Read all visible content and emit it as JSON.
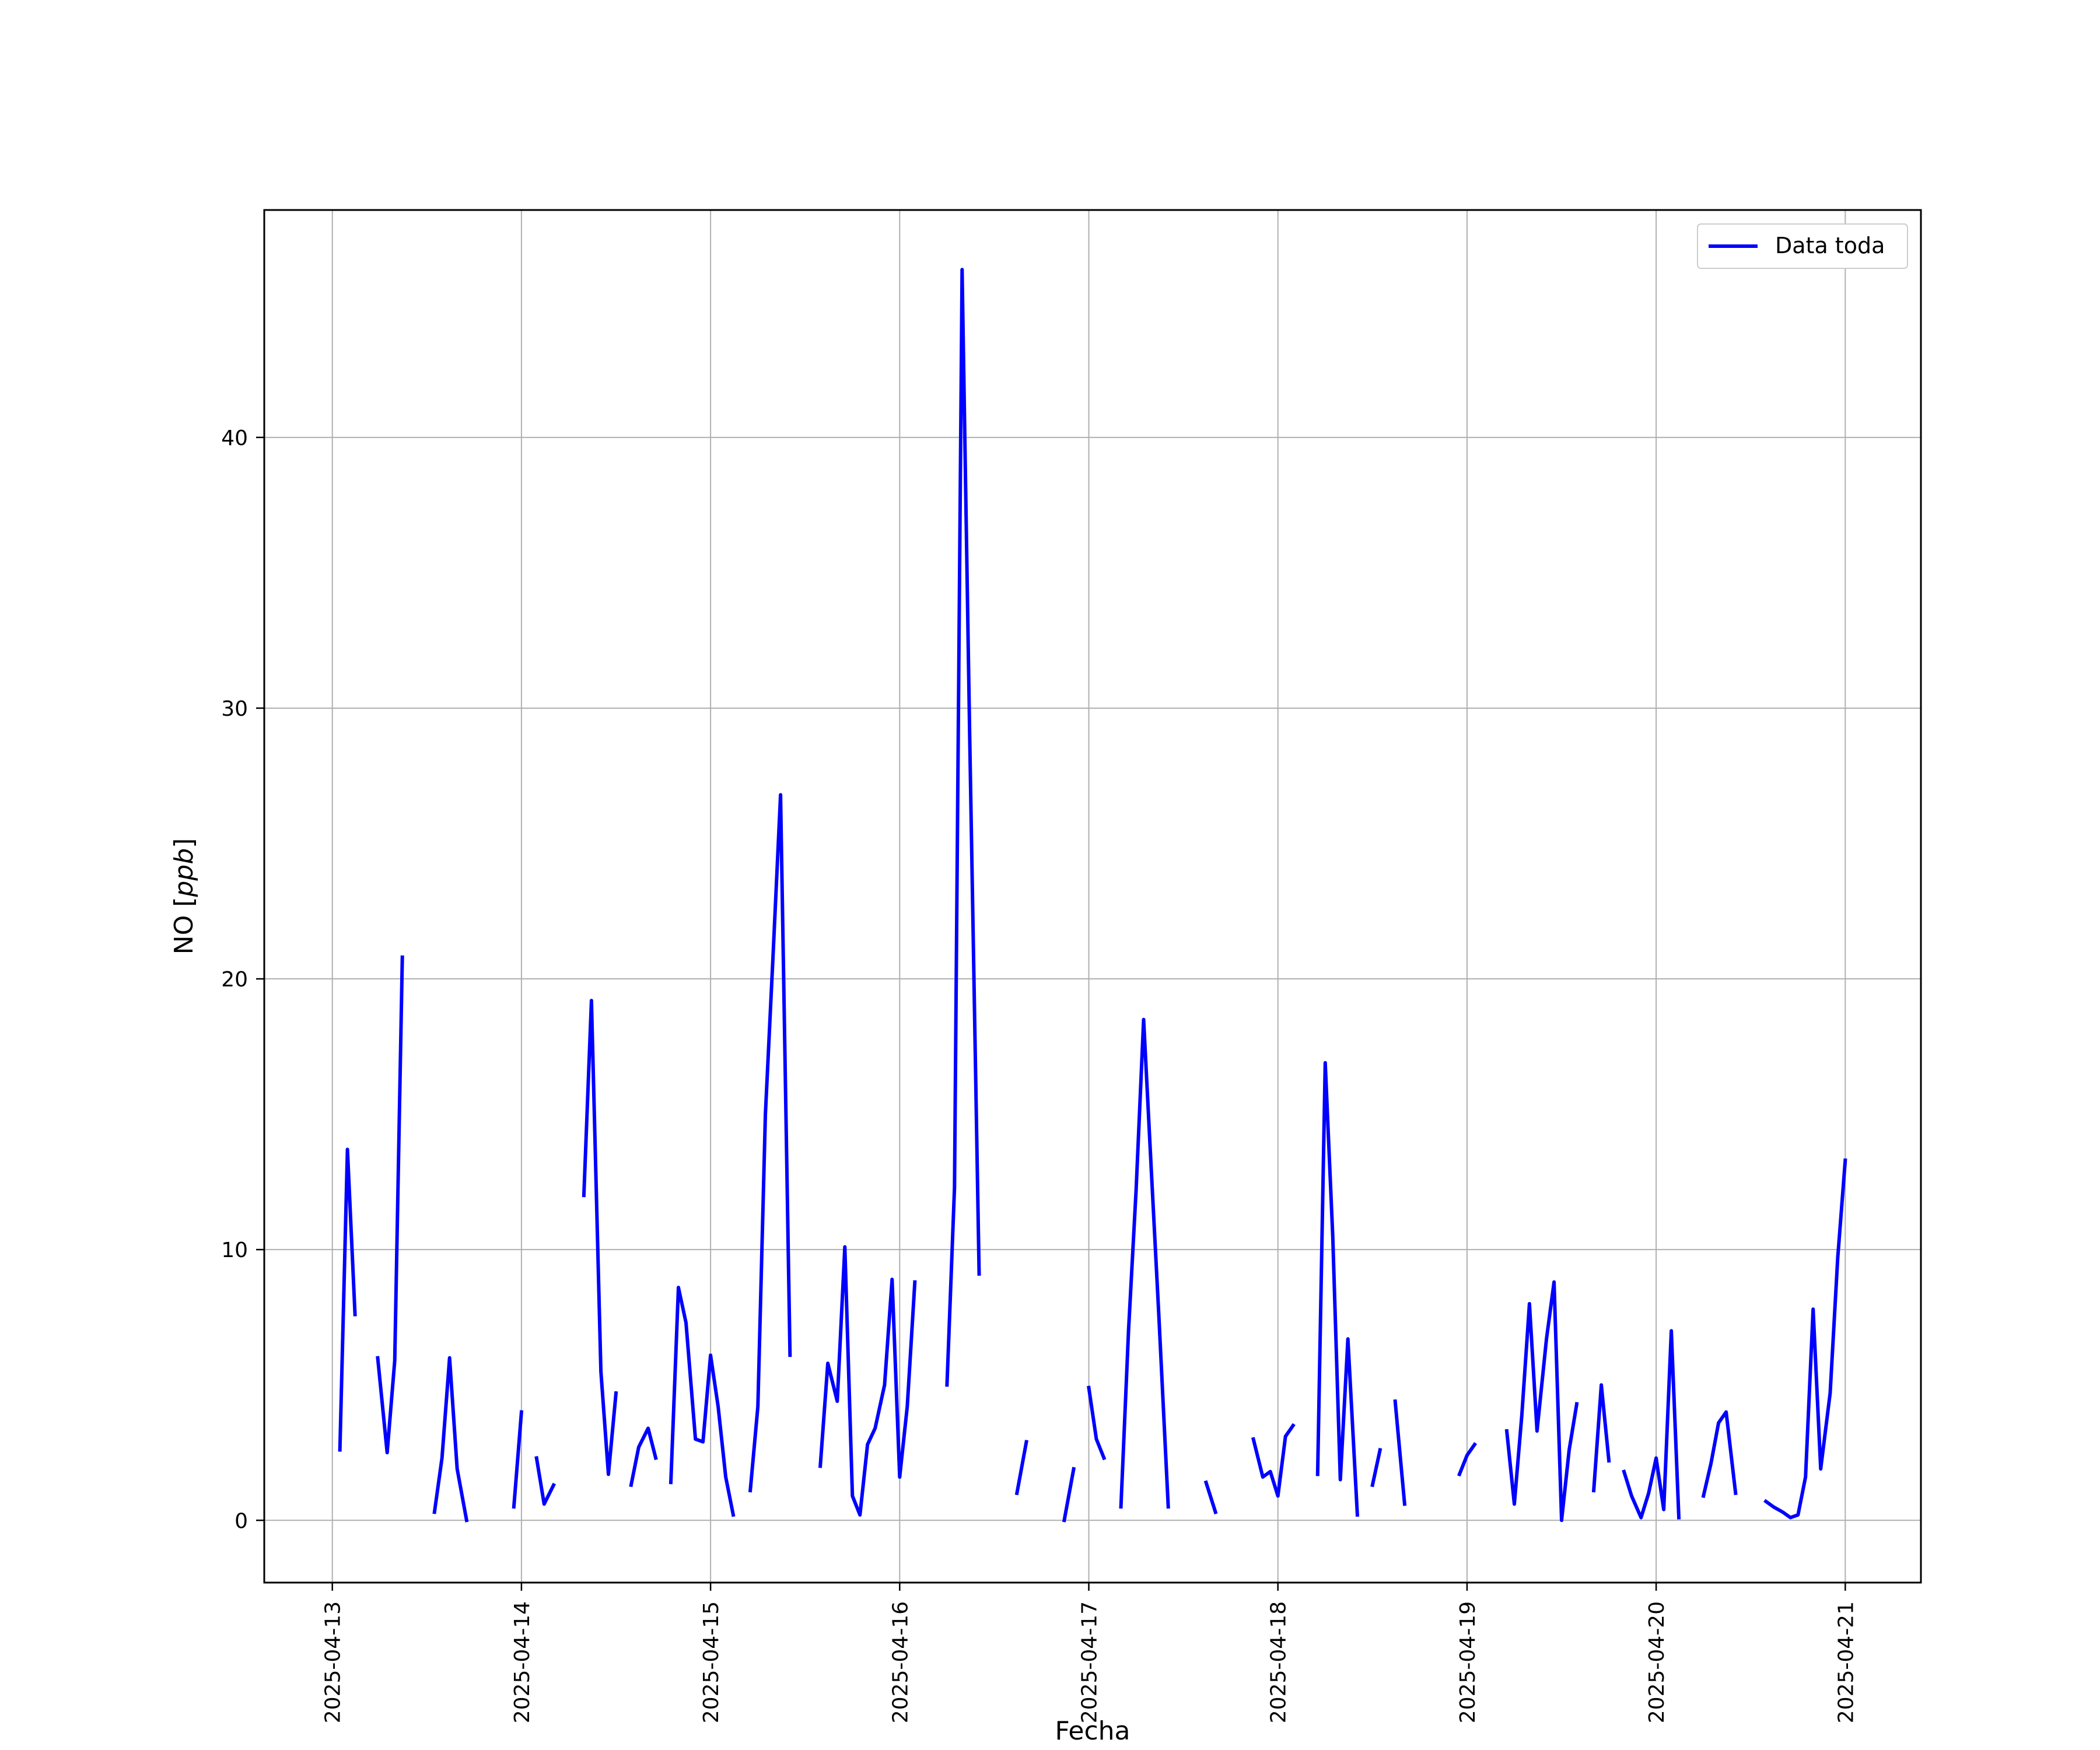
{
  "chart_data": {
    "type": "line",
    "title": "",
    "xlabel": "Fecha",
    "ylabel_main": "NO [",
    "ylabel_unit": "ppb",
    "ylabel_end": "]",
    "x_tick_labels": [
      "2025-04-13",
      "2025-04-14",
      "2025-04-15",
      "2025-04-16",
      "2025-04-17",
      "2025-04-18",
      "2025-04-19",
      "2025-04-20",
      "2025-04-21"
    ],
    "y_ticks": [
      0,
      10,
      20,
      30,
      40
    ],
    "xlim": [
      -0.36,
      8.4
    ],
    "ylim": [
      -2.3,
      48.4
    ],
    "grid": true,
    "legend_position": "top-right",
    "series": [
      {
        "name": "Data toda",
        "color": "#0000ff",
        "segments": [
          [
            [
              0.04,
              2.6
            ],
            [
              0.08,
              13.7
            ],
            [
              0.12,
              7.6
            ]
          ],
          [
            [
              0.24,
              6.0
            ],
            [
              0.29,
              2.5
            ],
            [
              0.33,
              5.9
            ],
            [
              0.37,
              20.8
            ]
          ],
          [
            [
              0.54,
              0.3
            ],
            [
              0.58,
              2.3
            ],
            [
              0.62,
              6.0
            ],
            [
              0.66,
              1.9
            ],
            [
              0.71,
              0.0
            ]
          ],
          [
            [
              0.96,
              0.5
            ],
            [
              1.0,
              4.0
            ]
          ],
          [
            [
              1.08,
              2.3
            ],
            [
              1.12,
              0.6
            ],
            [
              1.17,
              1.3
            ]
          ],
          [
            [
              1.33,
              12.0
            ],
            [
              1.37,
              19.2
            ],
            [
              1.42,
              5.5
            ],
            [
              1.46,
              1.7
            ],
            [
              1.5,
              4.7
            ]
          ],
          [
            [
              1.58,
              1.3
            ],
            [
              1.62,
              2.7
            ],
            [
              1.67,
              3.4
            ],
            [
              1.71,
              2.3
            ]
          ],
          [
            [
              1.79,
              1.4
            ],
            [
              1.83,
              8.6
            ],
            [
              1.87,
              7.3
            ],
            [
              1.92,
              3.0
            ],
            [
              1.96,
              2.9
            ],
            [
              2.0,
              6.1
            ],
            [
              2.04,
              4.2
            ],
            [
              2.08,
              1.6
            ],
            [
              2.12,
              0.2
            ]
          ],
          [
            [
              2.21,
              1.1
            ],
            [
              2.25,
              4.2
            ],
            [
              2.29,
              15.0
            ],
            [
              2.33,
              20.8
            ],
            [
              2.37,
              26.8
            ],
            [
              2.42,
              6.1
            ]
          ],
          [
            [
              2.58,
              2.0
            ],
            [
              2.62,
              5.8
            ],
            [
              2.67,
              4.4
            ],
            [
              2.71,
              10.1
            ],
            [
              2.75,
              0.9
            ],
            [
              2.79,
              0.2
            ],
            [
              2.83,
              2.8
            ],
            [
              2.87,
              3.4
            ],
            [
              2.92,
              5.0
            ],
            [
              2.96,
              8.9
            ],
            [
              3.0,
              1.6
            ],
            [
              3.04,
              4.2
            ],
            [
              3.08,
              8.8
            ]
          ],
          [
            [
              3.25,
              5.0
            ],
            [
              3.29,
              12.3
            ],
            [
              3.33,
              46.2
            ],
            [
              3.37,
              29.0
            ],
            [
              3.42,
              9.1
            ]
          ],
          [
            [
              3.62,
              1.0
            ],
            [
              3.67,
              2.9
            ]
          ],
          [
            [
              3.87,
              0.0
            ],
            [
              3.92,
              1.9
            ]
          ],
          [
            [
              4.0,
              4.9
            ],
            [
              4.04,
              3.0
            ],
            [
              4.08,
              2.3
            ]
          ],
          [
            [
              4.17,
              0.5
            ],
            [
              4.21,
              7.0
            ],
            [
              4.25,
              12.2
            ],
            [
              4.29,
              18.5
            ],
            [
              4.33,
              13.0
            ],
            [
              4.37,
              7.6
            ],
            [
              4.42,
              0.5
            ]
          ],
          [
            [
              4.62,
              1.4
            ],
            [
              4.67,
              0.3
            ]
          ],
          [
            [
              4.87,
              3.0
            ],
            [
              4.92,
              1.6
            ],
            [
              4.96,
              1.8
            ],
            [
              5.0,
              0.9
            ],
            [
              5.04,
              3.1
            ],
            [
              5.08,
              3.5
            ]
          ],
          [
            [
              5.21,
              1.7
            ],
            [
              5.25,
              16.9
            ],
            [
              5.29,
              10.5
            ],
            [
              5.33,
              1.5
            ],
            [
              5.37,
              6.7
            ],
            [
              5.42,
              0.2
            ]
          ],
          [
            [
              5.5,
              1.3
            ],
            [
              5.54,
              2.6
            ]
          ],
          [
            [
              5.62,
              4.4
            ],
            [
              5.67,
              0.6
            ]
          ],
          [
            [
              4.96,
              1.7
            ]
          ],
          [
            [
              5.96,
              1.7
            ],
            [
              6.0,
              2.4
            ],
            [
              6.04,
              2.8
            ]
          ],
          [
            [
              6.21,
              3.3
            ],
            [
              6.25,
              0.6
            ],
            [
              6.29,
              3.9
            ],
            [
              6.33,
              8.0
            ],
            [
              6.37,
              3.3
            ],
            [
              6.42,
              6.7
            ],
            [
              6.46,
              8.8
            ],
            [
              6.5,
              0.0
            ],
            [
              6.54,
              2.6
            ],
            [
              6.58,
              4.3
            ]
          ],
          [
            [
              6.67,
              1.1
            ],
            [
              6.71,
              5.0
            ],
            [
              6.75,
              2.2
            ]
          ],
          [
            [
              6.83,
              1.8
            ],
            [
              6.87,
              0.9
            ],
            [
              6.92,
              0.1
            ],
            [
              6.96,
              1.0
            ],
            [
              7.0,
              2.3
            ],
            [
              7.04,
              0.4
            ],
            [
              7.08,
              7.0
            ],
            [
              7.12,
              0.1
            ]
          ],
          [
            [
              7.25,
              0.9
            ],
            [
              7.29,
              2.1
            ],
            [
              7.33,
              3.6
            ],
            [
              7.37,
              4.0
            ],
            [
              7.42,
              1.0
            ]
          ],
          [
            [
              7.58,
              0.7
            ],
            [
              7.62,
              0.5
            ],
            [
              7.67,
              0.3
            ],
            [
              7.71,
              0.1
            ],
            [
              7.75,
              0.2
            ],
            [
              7.79,
              1.6
            ],
            [
              7.83,
              7.8
            ],
            [
              7.87,
              1.9
            ],
            [
              7.92,
              4.7
            ],
            [
              7.96,
              9.7
            ],
            [
              8.0,
              13.3
            ]
          ]
        ]
      }
    ]
  }
}
